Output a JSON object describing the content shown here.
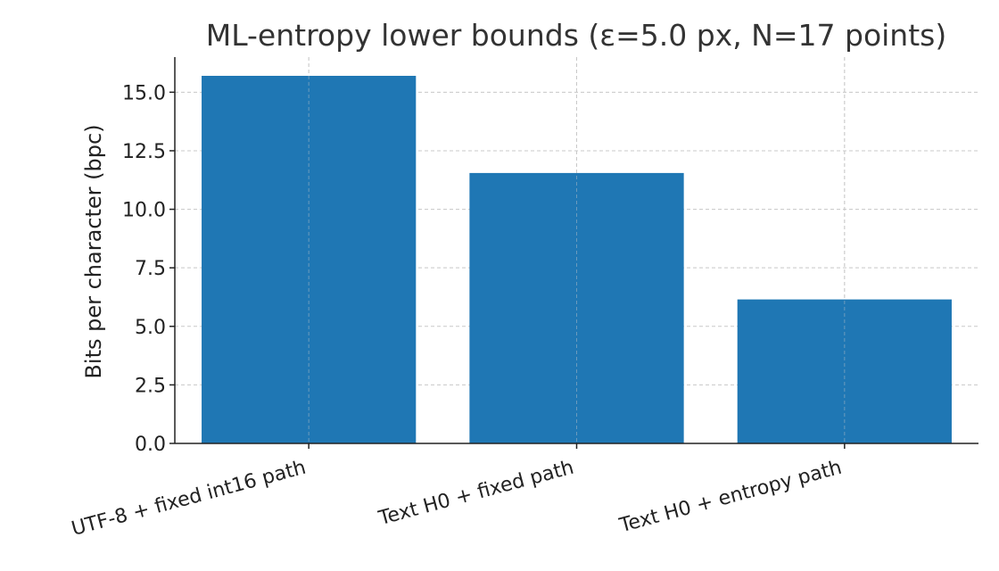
{
  "chart_data": {
    "type": "bar",
    "title": "ML-entropy lower bounds (ε=5.0 px, N=17 points)",
    "xlabel": "",
    "ylabel": "Bits per character (bpc)",
    "categories": [
      "UTF-8 + fixed int16 path",
      "Text H0 + fixed path",
      "Text H0 + entropy path"
    ],
    "values": [
      15.7,
      11.55,
      6.15
    ],
    "ylim": [
      0,
      16.5
    ],
    "yticks": [
      "0.0",
      "2.5",
      "5.0",
      "7.5",
      "10.0",
      "12.5",
      "15.0"
    ],
    "grid": true,
    "colors": {
      "bar": "#1f77b4"
    }
  }
}
